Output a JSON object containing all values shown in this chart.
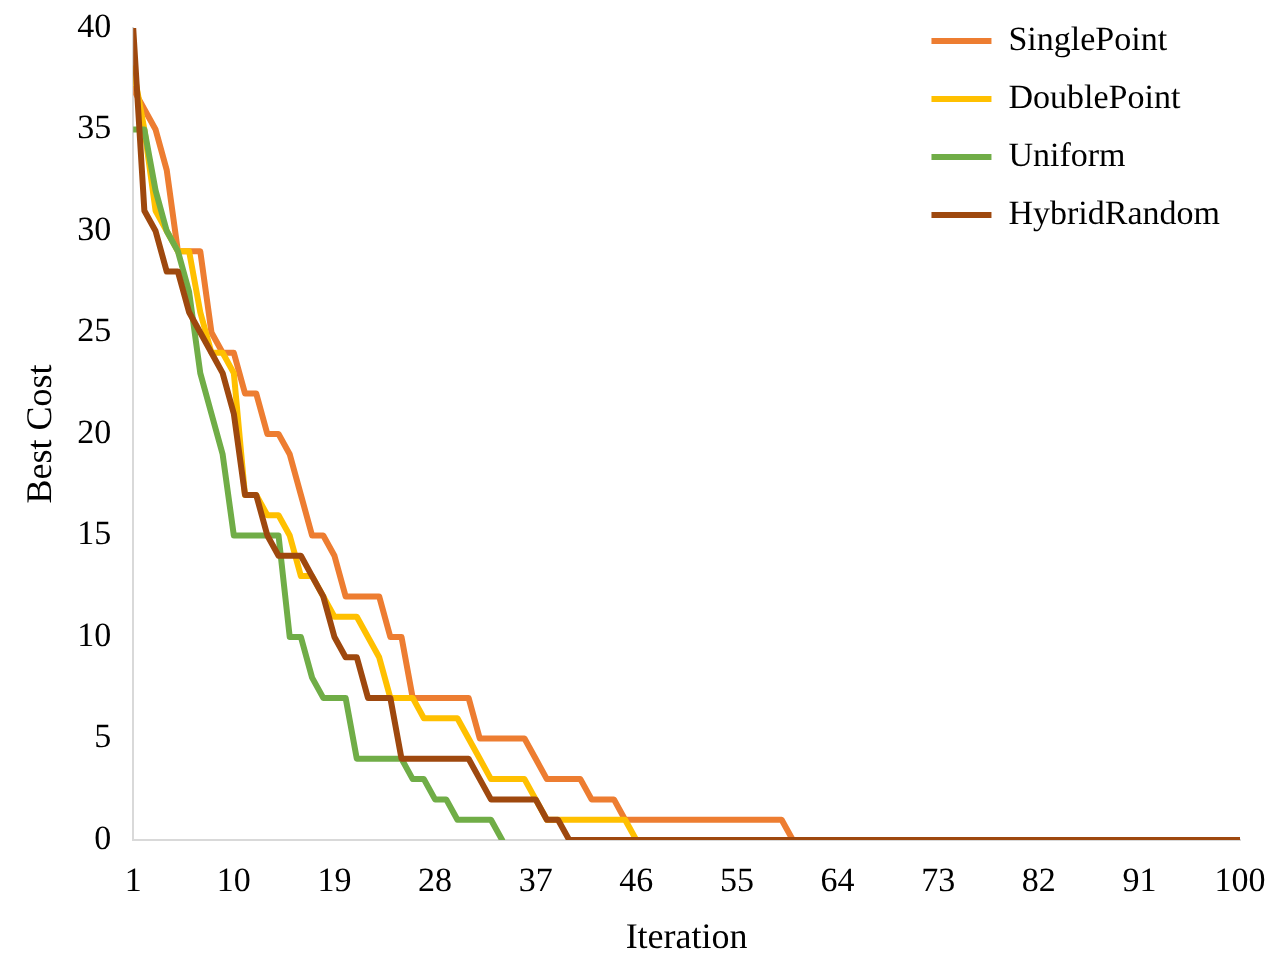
{
  "chart_data": {
    "type": "line",
    "xlabel": "Iteration",
    "ylabel": "Best Cost",
    "x": [
      1,
      2,
      3,
      4,
      5,
      6,
      7,
      8,
      9,
      10,
      11,
      12,
      13,
      14,
      15,
      16,
      17,
      18,
      19,
      20,
      21,
      22,
      23,
      24,
      25,
      26,
      27,
      28,
      29,
      30,
      31,
      32,
      33,
      34,
      35,
      36,
      37,
      38,
      39,
      40,
      41,
      42,
      43,
      44,
      45,
      46,
      47,
      48,
      49,
      50,
      51,
      52,
      53,
      54,
      55,
      56,
      57,
      58,
      59,
      60,
      61,
      62,
      63,
      64,
      65,
      66,
      67,
      68,
      69,
      70,
      71,
      72,
      73,
      74,
      75,
      76,
      77,
      78,
      79,
      80,
      81,
      82,
      83,
      84,
      85,
      86,
      87,
      88,
      89,
      90,
      91,
      92,
      93,
      94,
      95,
      96,
      97,
      98,
      99,
      100
    ],
    "xlim": [
      1,
      100
    ],
    "xticks": [
      1,
      10,
      19,
      28,
      37,
      46,
      55,
      64,
      73,
      82,
      91,
      100
    ],
    "ylim": [
      0,
      40
    ],
    "yticks": [
      0,
      5,
      10,
      15,
      20,
      25,
      30,
      35,
      40
    ],
    "grid": false,
    "legend": "top right",
    "line_style": "solid",
    "marker": "none",
    "series": [
      {
        "name": "SinglePoint",
        "color": "#ed7d31",
        "values": [
          37,
          36,
          35,
          33,
          29,
          29,
          29,
          25,
          24,
          24,
          22,
          22,
          20,
          20,
          19,
          17,
          15,
          15,
          14,
          12,
          12,
          12,
          12,
          10,
          10,
          7,
          7,
          7,
          7,
          7,
          7,
          5,
          5,
          5,
          5,
          5,
          4,
          3,
          3,
          3,
          3,
          2,
          2,
          2,
          1,
          1,
          1,
          1,
          1,
          1,
          1,
          1,
          1,
          1,
          1,
          1,
          1,
          1,
          1,
          0,
          null,
          null,
          null,
          null,
          null,
          null,
          null,
          null,
          null,
          null,
          null,
          null,
          null,
          null,
          null,
          null,
          null,
          null,
          null,
          null,
          null,
          null,
          null,
          null,
          null,
          null,
          null,
          null,
          null,
          null,
          null,
          null,
          null,
          null,
          null,
          null,
          null,
          null,
          null,
          null
        ]
      },
      {
        "name": "DoublePoint",
        "color": "#ffc000",
        "values": [
          38,
          35,
          31,
          30,
          29,
          29,
          26,
          24,
          24,
          23,
          17,
          17,
          16,
          16,
          15,
          13,
          13,
          12,
          11,
          11,
          11,
          10,
          9,
          7,
          7,
          7,
          6,
          6,
          6,
          6,
          5,
          4,
          3,
          3,
          3,
          3,
          2,
          1,
          1,
          1,
          1,
          1,
          1,
          1,
          1,
          0,
          null,
          null,
          null,
          null,
          null,
          null,
          null,
          null,
          null,
          null,
          null,
          null,
          null,
          null,
          null,
          null,
          null,
          null,
          null,
          null,
          null,
          null,
          null,
          null,
          null,
          null,
          null,
          null,
          null,
          null,
          null,
          null,
          null,
          null,
          null,
          null,
          null,
          null,
          null,
          null,
          null,
          null,
          null,
          null,
          null,
          null,
          null,
          null,
          null,
          null,
          null,
          null,
          null,
          null
        ]
      },
      {
        "name": "Uniform",
        "color": "#70ad47",
        "values": [
          35,
          35,
          32,
          30,
          29,
          27,
          23,
          21,
          19,
          15,
          15,
          15,
          15,
          15,
          10,
          10,
          8,
          7,
          7,
          7,
          4,
          4,
          4,
          4,
          4,
          3,
          3,
          2,
          2,
          1,
          1,
          1,
          1,
          0,
          null,
          null,
          null,
          null,
          null,
          null,
          null,
          null,
          null,
          null,
          null,
          null,
          null,
          null,
          null,
          null,
          null,
          null,
          null,
          null,
          null,
          null,
          null,
          null,
          null,
          null,
          null,
          null,
          null,
          null,
          null,
          null,
          null,
          null,
          null,
          null,
          null,
          null,
          null,
          null,
          null,
          null,
          null,
          null,
          null,
          null,
          null,
          null,
          null,
          null,
          null,
          null,
          null,
          null,
          null,
          null,
          null,
          null,
          null,
          null,
          null,
          null,
          null,
          null,
          null,
          null
        ]
      },
      {
        "name": "HybridRandom",
        "color": "#9e480e",
        "values": [
          40,
          31,
          30,
          28,
          28,
          26,
          25,
          24,
          23,
          21,
          17,
          17,
          15,
          14,
          14,
          14,
          13,
          12,
          10,
          9,
          9,
          7,
          7,
          7,
          4,
          4,
          4,
          4,
          4,
          4,
          4,
          3,
          2,
          2,
          2,
          2,
          2,
          1,
          1,
          0,
          0,
          0,
          0,
          0,
          0,
          0,
          0,
          0,
          0,
          0,
          0,
          0,
          0,
          0,
          0,
          0,
          0,
          0,
          0,
          0,
          0,
          0,
          0,
          0,
          0,
          0,
          0,
          0,
          0,
          0,
          0,
          0,
          0,
          0,
          0,
          0,
          0,
          0,
          0,
          0,
          0,
          0,
          0,
          0,
          0,
          0,
          0,
          0,
          0,
          0,
          0,
          0,
          0,
          0,
          0,
          0,
          0,
          0,
          0,
          0
        ]
      }
    ]
  }
}
